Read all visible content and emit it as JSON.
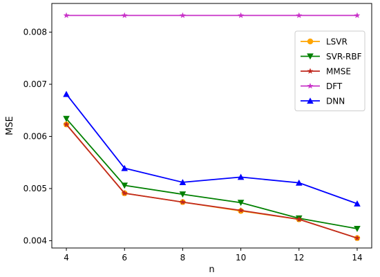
{
  "chart_data": {
    "type": "line",
    "title": "",
    "xlabel": "n",
    "ylabel": "MSE",
    "x": [
      4,
      6,
      8,
      10,
      12,
      14
    ],
    "xticks": [
      "4",
      "6",
      "8",
      "10",
      "12",
      "14"
    ],
    "xlim": [
      3.5,
      14.5
    ],
    "yticks": [
      "0.004",
      "0.005",
      "0.006",
      "0.007",
      "0.008"
    ],
    "ytick_values": [
      0.004,
      0.005,
      0.006,
      0.007,
      0.008
    ],
    "ylim": [
      0.00386,
      0.00855
    ],
    "grid": false,
    "legend_position": "upper right",
    "series": [
      {
        "name": "LSVR",
        "color": "#ffa500",
        "marker": "circle",
        "values": [
          0.00623,
          0.00491,
          0.00474,
          0.00457,
          0.00441,
          0.00405
        ]
      },
      {
        "name": "SVR-RBF",
        "color": "#008000",
        "marker": "triangle-down",
        "values": [
          0.00634,
          0.00506,
          0.00489,
          0.00473,
          0.00443,
          0.00423
        ]
      },
      {
        "name": "MMSE",
        "color": "#c0281e",
        "marker": "star",
        "values": [
          0.00623,
          0.00491,
          0.00474,
          0.00458,
          0.00441,
          0.00405
        ]
      },
      {
        "name": "DFT",
        "color": "#c832c8",
        "marker": "star",
        "values": [
          0.00832,
          0.00832,
          0.00832,
          0.00832,
          0.00832,
          0.00832
        ]
      },
      {
        "name": "DNN",
        "color": "#0000ff",
        "marker": "triangle-up",
        "values": [
          0.00681,
          0.00539,
          0.00512,
          0.00522,
          0.00511,
          0.00471
        ]
      }
    ]
  }
}
